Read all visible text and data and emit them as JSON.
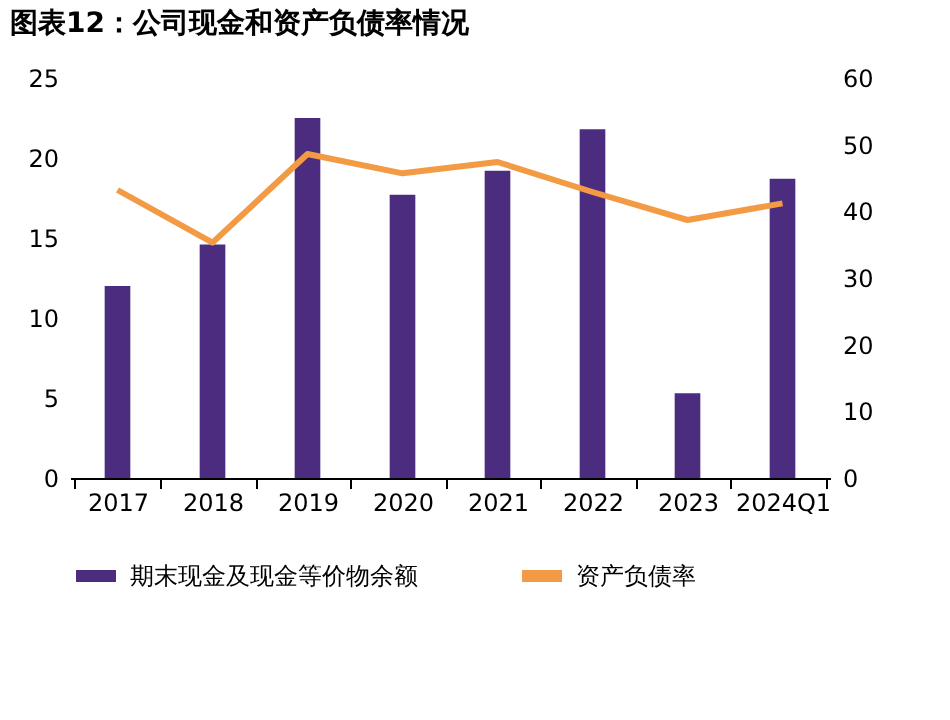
{
  "chart_data": {
    "type": "bar",
    "title": "图表12：公司现金和资产负债率情况",
    "categories": [
      "2017",
      "2018",
      "2019",
      "2020",
      "2021",
      "2022",
      "2023",
      "2024Q1"
    ],
    "series": [
      {
        "name": "期末现金及现金等价物余额",
        "color": "#4b2c7f",
        "values": [
          12.0,
          14.6,
          22.5,
          17.7,
          19.2,
          21.8,
          5.3,
          18.7
        ]
      },
      {
        "name": "资产负债率",
        "type": "line",
        "axis": "y2",
        "color": "#f39a45",
        "values": [
          43.2,
          35.3,
          48.6,
          45.7,
          47.4,
          42.9,
          38.7,
          41.2
        ]
      }
    ],
    "ylim": [
      0,
      25
    ],
    "yticks": [
      0,
      5,
      10,
      15,
      20,
      25
    ],
    "y2lim": [
      0,
      60
    ],
    "y2ticks": [
      0,
      10,
      20,
      30,
      40,
      50,
      60
    ],
    "legend": "bottom"
  }
}
